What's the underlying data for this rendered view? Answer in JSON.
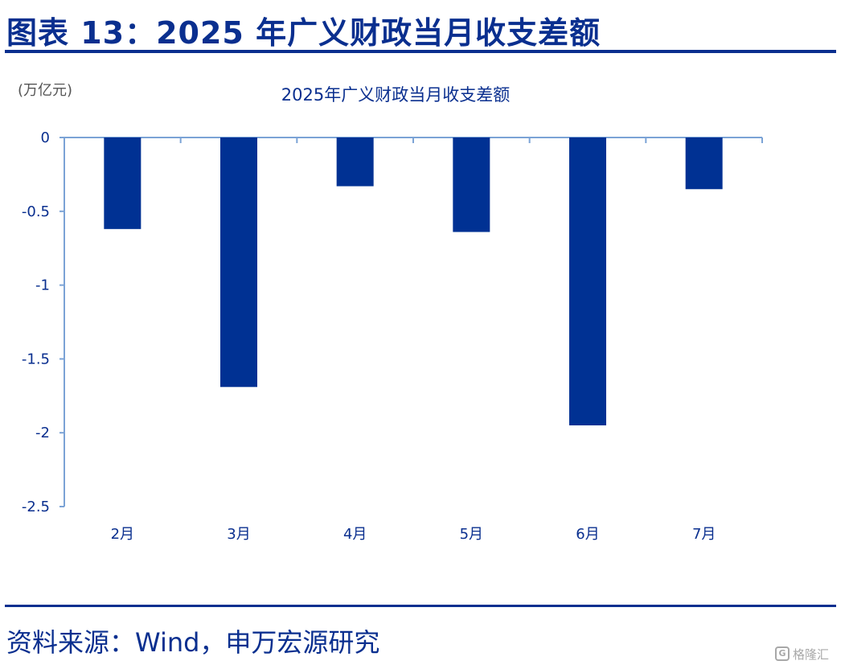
{
  "figure_title": "图表 13：2025 年广义财政当月收支差额",
  "source": "资料来源：Wind，申万宏源研究",
  "watermark": "格隆汇",
  "colors": {
    "bar": "#003193",
    "axis": "#7ba3d6",
    "text": "#0a2f8f"
  },
  "chart_data": {
    "type": "bar",
    "title": "2025年广义财政当月收支差额",
    "unit_label": "(万亿元)",
    "categories": [
      "2月",
      "3月",
      "4月",
      "5月",
      "6月",
      "7月"
    ],
    "values": [
      -0.62,
      -1.69,
      -0.33,
      -0.64,
      -1.95,
      -0.35
    ],
    "ylim": [
      -2.5,
      0
    ],
    "yticks": [
      0,
      -0.5,
      -1,
      -1.5,
      -2,
      -2.5
    ],
    "ytick_labels": [
      "0",
      "-0.5",
      "-1",
      "-1.5",
      "-2",
      "-2.5"
    ],
    "grid": false,
    "legend": "none"
  }
}
